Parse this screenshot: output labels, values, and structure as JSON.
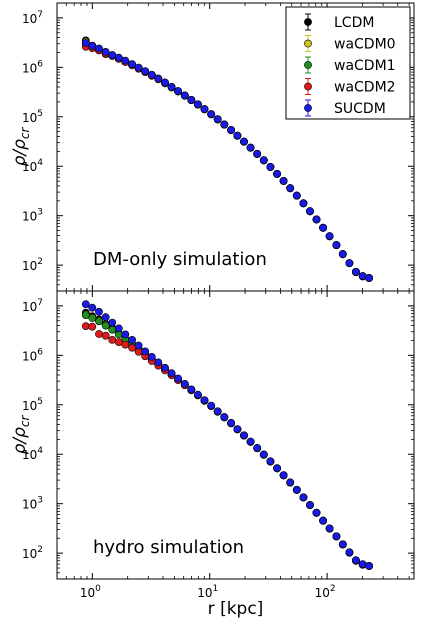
{
  "chart_data": [
    {
      "type": "scatter",
      "panel_label": "DM-only simulation",
      "ylabel": "ρ/ρ_cr",
      "xlabel": "",
      "x_scale": "log",
      "y_scale": "log",
      "xlim": [
        0.5,
        550
      ],
      "ylim": [
        30,
        20000000
      ],
      "x_ticks": [
        1,
        10,
        100
      ],
      "x_tick_labels": [
        "10^0",
        "10^1",
        "10^2"
      ],
      "y_ticks": [
        100,
        1000,
        10000,
        100000,
        1000000,
        10000000
      ],
      "y_tick_labels": [
        "10^2",
        "10^3",
        "10^4",
        "10^5",
        "10^6",
        "10^7"
      ],
      "legend": {
        "placement": "top-right",
        "entries": [
          "LCDM",
          "waCDM0",
          "waCDM1",
          "waCDM2",
          "SUCDM"
        ]
      },
      "x": [
        0.88,
        1.0,
        1.14,
        1.3,
        1.48,
        1.68,
        1.91,
        2.18,
        2.48,
        2.82,
        3.21,
        3.65,
        4.16,
        4.73,
        5.38,
        6.13,
        6.97,
        7.93,
        9.03,
        10.3,
        11.7,
        13.3,
        15.2,
        17.2,
        19.6,
        22.3,
        25.4,
        28.9,
        32.9,
        37.5,
        42.6,
        48.5,
        55.2,
        62.8,
        71.5,
        81.3,
        92.5,
        105,
        120,
        136,
        155,
        176,
        201,
        228
      ],
      "series": [
        {
          "name": "LCDM",
          "color": "#000000",
          "values": [
            3500000,
            2750000,
            2350000,
            2000000,
            1750000,
            1550000,
            1350000,
            1150000,
            980000,
            830000,
            700000,
            590000,
            490000,
            400000,
            330000,
            270000,
            220000,
            178000,
            143000,
            113000,
            89000,
            70000,
            54000,
            41500,
            31500,
            23800,
            17800,
            13200,
            9700,
            7000,
            5050,
            3600,
            2550,
            1780,
            1230,
            840,
            570,
            385,
            255,
            168,
            110,
            73,
            60,
            55
          ]
        },
        {
          "name": "waCDM0",
          "color": "#c9c415",
          "values": [
            3300000,
            2650000,
            2200000,
            1850000,
            1700000,
            1500000,
            1300000,
            1130000,
            970000,
            820000,
            690000,
            585000,
            485000,
            398000,
            328000,
            268000,
            219000,
            177000,
            142000,
            112500,
            88500,
            69500,
            53700,
            41300,
            31300,
            23700,
            17700,
            13150,
            9650,
            6980,
            5030,
            3590,
            2540,
            1775,
            1225,
            838,
            568,
            383,
            254,
            167,
            110,
            73,
            60,
            55
          ]
        },
        {
          "name": "waCDM1",
          "color": "#1f8f1f",
          "values": [
            3000000,
            2600000,
            2300000,
            1950000,
            1720000,
            1520000,
            1330000,
            1140000,
            975000,
            825000,
            695000,
            588000,
            488000,
            399000,
            329000,
            269000,
            219500,
            177500,
            142500,
            112800,
            88800,
            69800,
            53900,
            41400,
            31400,
            23750,
            17750,
            13180,
            9680,
            6990,
            5040,
            3595,
            2545,
            1778,
            1228,
            839,
            569,
            384,
            254,
            167,
            110,
            73,
            60,
            55
          ]
        },
        {
          "name": "waCDM2",
          "color": "#e01a1a",
          "values": [
            2600000,
            2450000,
            2200000,
            1900000,
            1700000,
            1480000,
            1280000,
            1100000,
            940000,
            800000,
            675000,
            572000,
            476000,
            392000,
            324000,
            266000,
            217000,
            176000,
            141500,
            112000,
            88200,
            69300,
            53600,
            41200,
            31200,
            23650,
            17700,
            13120,
            9630,
            6960,
            5020,
            3585,
            2535,
            1772,
            1222,
            836,
            567,
            382,
            253,
            166,
            109,
            72,
            59,
            55
          ]
        },
        {
          "name": "SUCDM",
          "color": "#1a1ae6",
          "values": [
            3100000,
            2700000,
            2400000,
            2050000,
            1780000,
            1570000,
            1370000,
            1160000,
            990000,
            840000,
            705000,
            595000,
            493000,
            402000,
            331000,
            271000,
            221000,
            178500,
            143500,
            113300,
            89200,
            70200,
            54200,
            41600,
            31600,
            23850,
            17850,
            13230,
            9720,
            7020,
            5060,
            3605,
            2555,
            1785,
            1232,
            842,
            571,
            386,
            256,
            168,
            110,
            73,
            60,
            55
          ]
        }
      ]
    },
    {
      "type": "scatter",
      "panel_label": "hydro simulation",
      "ylabel": "ρ/ρ_cr",
      "xlabel": "r [kpc]",
      "x_scale": "log",
      "y_scale": "log",
      "xlim": [
        0.5,
        550
      ],
      "ylim": [
        30,
        20000000
      ],
      "x_ticks": [
        1,
        10,
        100
      ],
      "x_tick_labels": [
        "10^0",
        "10^1",
        "10^2"
      ],
      "y_ticks": [
        100,
        1000,
        10000,
        100000,
        1000000,
        10000000
      ],
      "y_tick_labels": [
        "10^2",
        "10^3",
        "10^4",
        "10^5",
        "10^6",
        "10^7"
      ],
      "x": [
        0.88,
        1.0,
        1.14,
        1.3,
        1.48,
        1.68,
        1.91,
        2.18,
        2.48,
        2.82,
        3.21,
        3.65,
        4.16,
        4.73,
        5.38,
        6.13,
        6.97,
        7.93,
        9.03,
        10.3,
        11.7,
        13.3,
        15.2,
        17.2,
        19.6,
        22.3,
        25.4,
        28.9,
        32.9,
        37.5,
        42.6,
        48.5,
        55.2,
        62.8,
        71.5,
        81.3,
        92.5,
        105,
        120,
        136,
        155,
        176,
        201,
        228
      ],
      "series": [
        {
          "name": "LCDM",
          "color": "#000000",
          "values": [
            7300000,
            6200000,
            5300000,
            4300000,
            3500000,
            2750000,
            2150000,
            1700000,
            1350000,
            1050000,
            830000,
            660000,
            520000,
            410000,
            325000,
            255000,
            200000,
            157000,
            122000,
            95000,
            73000,
            56000,
            42500,
            32000,
            24000,
            17900,
            13300,
            9800,
            7150,
            5200,
            3750,
            2680,
            1900,
            1340,
            940,
            655,
            455,
            315,
            218,
            150,
            103,
            71,
            59,
            55
          ]
        },
        {
          "name": "waCDM0",
          "color": "#c9c415",
          "values": [
            6800000,
            5900000,
            5100000,
            4150000,
            3400000,
            2700000,
            2100000,
            1680000,
            1330000,
            1040000,
            825000,
            655000,
            517000,
            408000,
            323000,
            254000,
            199000,
            156500,
            121700,
            94800,
            72900,
            55900,
            42400,
            31950,
            23950,
            17880,
            13280,
            9790,
            7140,
            5195,
            3745,
            2678,
            1898,
            1338,
            939,
            654,
            454,
            314,
            218,
            150,
            103,
            71,
            59,
            55
          ]
        },
        {
          "name": "waCDM1",
          "color": "#1f8f1f",
          "values": [
            6500000,
            5700000,
            4900000,
            4000000,
            3300000,
            2650000,
            2080000,
            1660000,
            1320000,
            1035000,
            820000,
            652000,
            515000,
            407000,
            322000,
            253500,
            198500,
            156200,
            121500,
            94700,
            72800,
            55850,
            42350,
            31920,
            23920,
            17860,
            13270,
            9785,
            7135,
            5192,
            3742,
            2676,
            1897,
            1337,
            938,
            654,
            454,
            314,
            218,
            150,
            103,
            71,
            59,
            55
          ]
        },
        {
          "name": "waCDM2",
          "color": "#e01a1a",
          "values": [
            3900000,
            3800000,
            2700000,
            2500000,
            2050000,
            1850000,
            1650000,
            1430000,
            1180000,
            960000,
            770000,
            620000,
            495000,
            395000,
            315000,
            249000,
            196000,
            154500,
            120500,
            94000,
            72300,
            55500,
            42100,
            31750,
            23800,
            17780,
            13220,
            9750,
            7110,
            5175,
            3732,
            2670,
            1893,
            1334,
            936,
            652,
            453,
            313,
            217,
            149,
            102,
            70,
            58,
            55
          ]
        },
        {
          "name": "SUCDM",
          "color": "#1a1ae6",
          "values": [
            10800000,
            9200000,
            7600000,
            5900000,
            4600000,
            3500000,
            2650000,
            2050000,
            1580000,
            1200000,
            930000,
            720000,
            560000,
            435000,
            340000,
            264000,
            205000,
            160000,
            124500,
            96500,
            74000,
            56700,
            43000,
            32300,
            24200,
            18050,
            13400,
            9870,
            7200,
            5230,
            3770,
            2692,
            1907,
            1344,
            943,
            657,
            456,
            316,
            219,
            151,
            104,
            72,
            60,
            55
          ]
        }
      ]
    }
  ]
}
